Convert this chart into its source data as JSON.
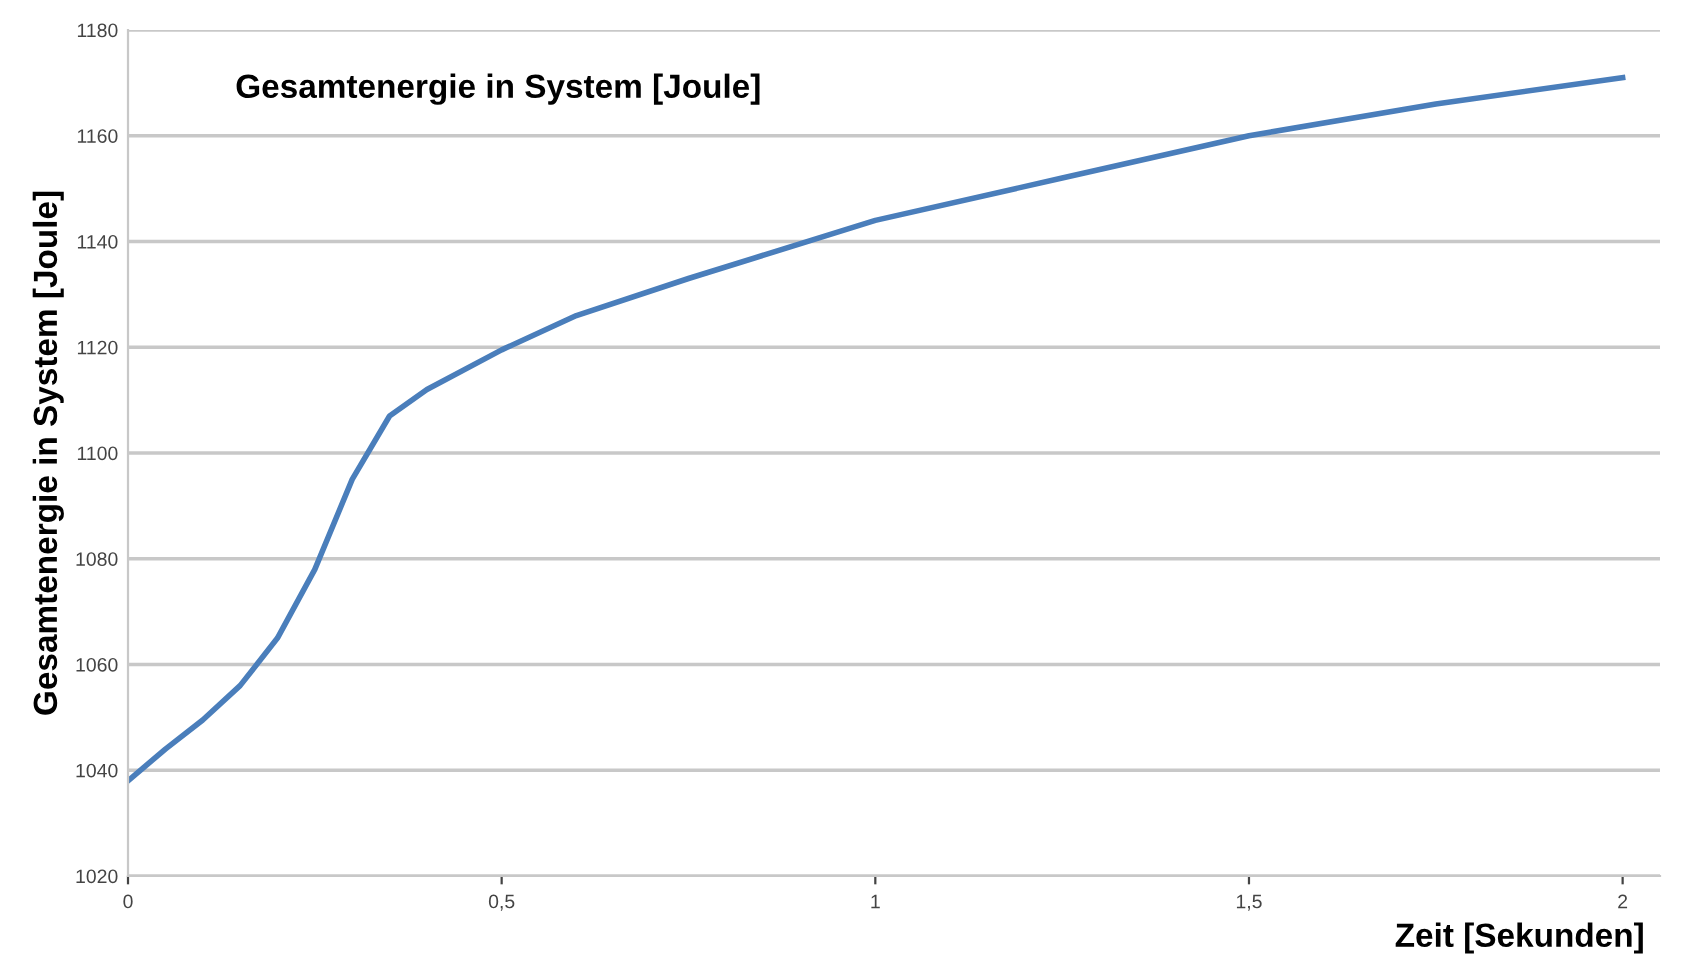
{
  "chart_data": {
    "type": "line",
    "title": "Gesamtenergie in System [Joule]",
    "xlabel": "Zeit [Sekunden]",
    "ylabel": "Gesamtenergie in System [Joule]",
    "x": [
      0,
      0.05,
      0.1,
      0.15,
      0.2,
      0.25,
      0.3,
      0.35,
      0.4,
      0.5,
      0.6,
      0.75,
      1.0,
      1.25,
      1.5,
      1.75,
      2.0
    ],
    "series": [
      {
        "color": "#4a7ebb",
        "values": [
          1038,
          1044,
          1049.5,
          1056,
          1065,
          1078,
          1095,
          1107,
          1112,
          1119.5,
          1126,
          1133,
          1144,
          1152,
          1160,
          1166,
          1171
        ]
      }
    ],
    "xlim": [
      0,
      2.05
    ],
    "xticks": [
      0,
      {
        "value": 0.5,
        "label": "0,5"
      },
      1,
      {
        "value": 1.5,
        "label": "1,5"
      },
      2
    ],
    "ylim": [
      1020,
      1180
    ],
    "yticks": [
      1020,
      1040,
      1060,
      1080,
      1100,
      1120,
      1140,
      1160,
      1180
    ],
    "grid": "y",
    "marker": "none",
    "line_style": "solid"
  }
}
